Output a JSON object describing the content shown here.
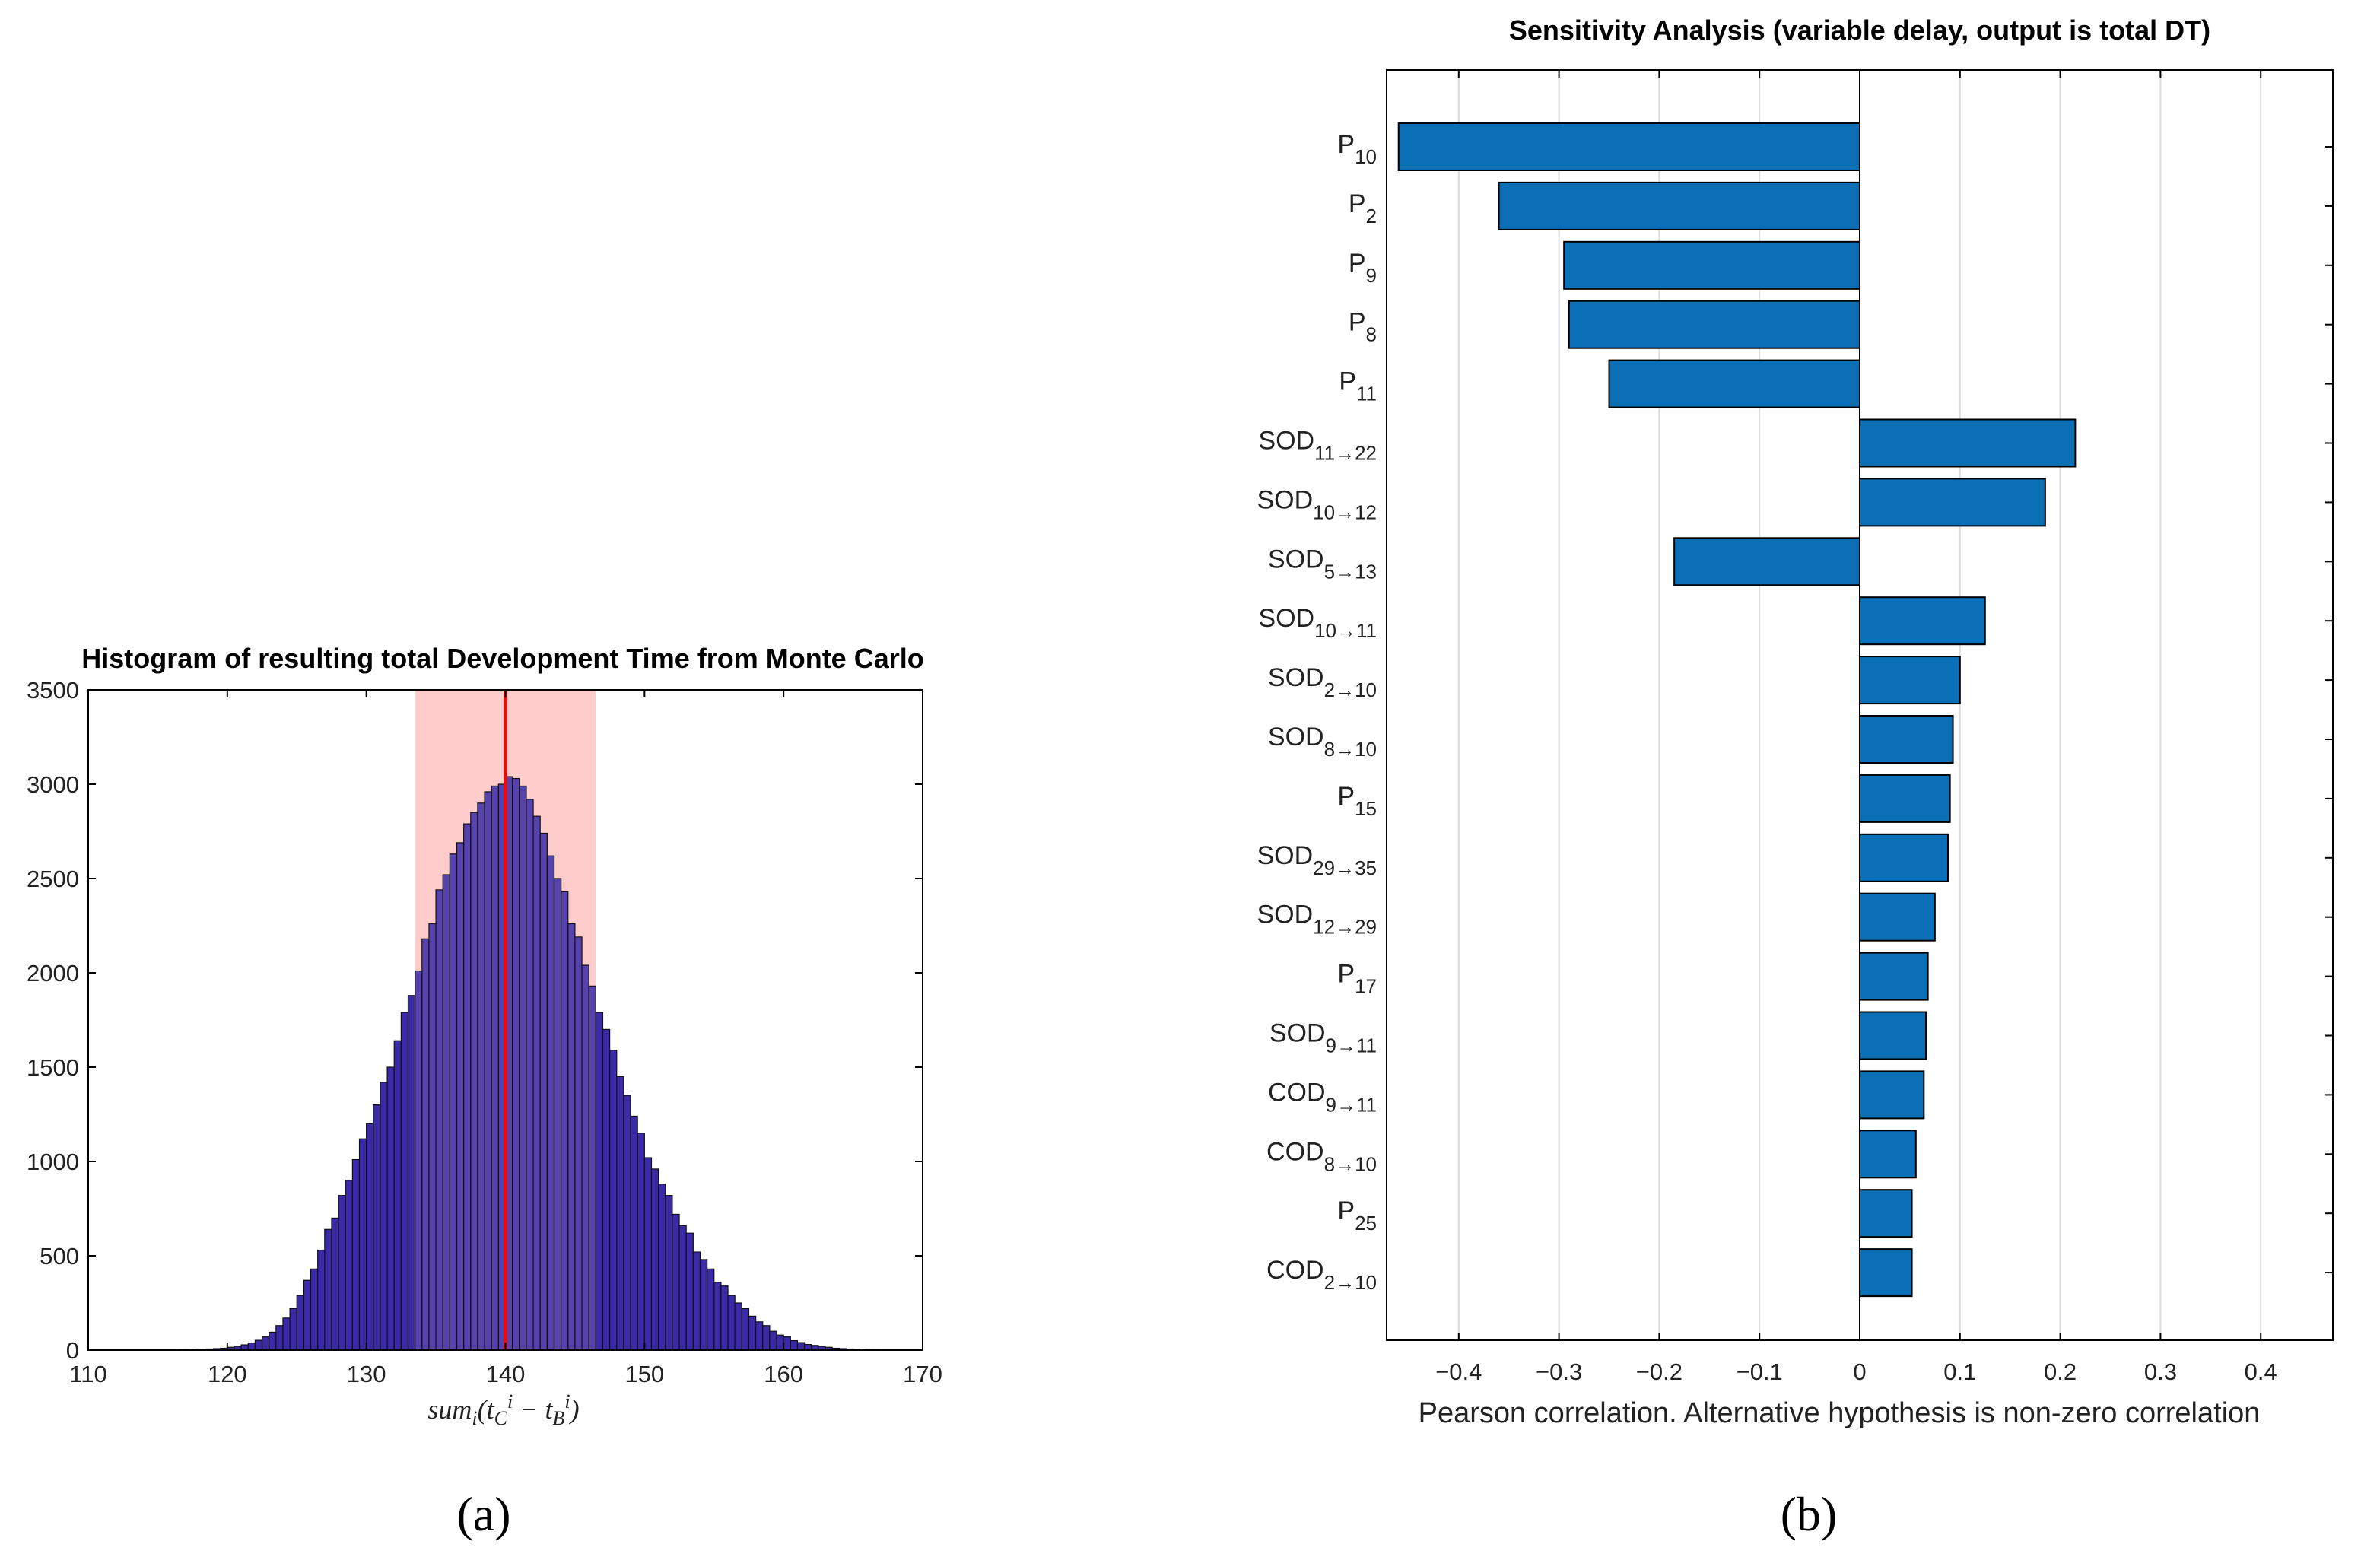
{
  "chart_data": [
    {
      "id": "a",
      "type": "bar",
      "subtype": "histogram",
      "title": "Histogram of resulting total Development Time from Monte Carlo",
      "xlabel_math": "sum_i(t_C^i - t_B^i)",
      "xlim": [
        110,
        170
      ],
      "ylim": [
        0,
        3500
      ],
      "xticks": [
        110,
        120,
        130,
        140,
        150,
        160,
        170
      ],
      "yticks": [
        0,
        500,
        1000,
        1500,
        2000,
        2500,
        3000,
        3500
      ],
      "bin_start": 115.5,
      "bin_width": 0.5,
      "values": [
        1,
        1,
        2,
        2,
        3,
        5,
        6,
        8,
        10,
        15,
        20,
        28,
        38,
        52,
        70,
        95,
        130,
        170,
        220,
        290,
        370,
        430,
        530,
        640,
        700,
        820,
        900,
        1010,
        1120,
        1200,
        1300,
        1420,
        1500,
        1640,
        1790,
        1880,
        2010,
        2180,
        2260,
        2440,
        2520,
        2630,
        2690,
        2790,
        2850,
        2900,
        2960,
        2990,
        3000,
        3040,
        3030,
        2990,
        2920,
        2830,
        2740,
        2620,
        2500,
        2430,
        2260,
        2190,
        2040,
        1930,
        1790,
        1700,
        1590,
        1450,
        1350,
        1240,
        1150,
        1020,
        960,
        880,
        820,
        720,
        660,
        620,
        520,
        480,
        430,
        360,
        340,
        290,
        250,
        220,
        180,
        150,
        130,
        100,
        80,
        70,
        50,
        40,
        30,
        25,
        20,
        15,
        10,
        8,
        6,
        5,
        3,
        2,
        2,
        1,
        1
      ],
      "shaded_range": [
        133.5,
        146.5
      ],
      "mean_line": 140,
      "bar_color": "#3a2aa8",
      "shade_color": "#ffcccc",
      "line_color": "#e01010",
      "caption": "(a)"
    },
    {
      "id": "b",
      "type": "bar",
      "orientation": "horizontal",
      "title": "Sensitivity Analysis (variable delay, output is total DT)",
      "xlabel": "Pearson correlation. Alternative hypothesis is non-zero correlation",
      "xlim": [
        -0.47,
        0.47
      ],
      "xticks": [
        -0.4,
        -0.3,
        -0.2,
        -0.1,
        0,
        0.1,
        0.2,
        0.3,
        0.4
      ],
      "xtick_labels": [
        "−0.4",
        "−0.3",
        "−0.2",
        "−0.1",
        "0",
        "0.1",
        "0.2",
        "0.3",
        "0.4"
      ],
      "grid": true,
      "categories": [
        {
          "base": "P",
          "sub": "10"
        },
        {
          "base": "P",
          "sub": "2"
        },
        {
          "base": "P",
          "sub": "9"
        },
        {
          "base": "P",
          "sub": "8"
        },
        {
          "base": "P",
          "sub": "11"
        },
        {
          "base": "SOD",
          "sub": "11→22"
        },
        {
          "base": "SOD",
          "sub": "10→12"
        },
        {
          "base": "SOD",
          "sub": "5→13"
        },
        {
          "base": "SOD",
          "sub": "10→11"
        },
        {
          "base": "SOD",
          "sub": "2→10"
        },
        {
          "base": "SOD",
          "sub": "8→10"
        },
        {
          "base": "P",
          "sub": "15"
        },
        {
          "base": "SOD",
          "sub": "29→35"
        },
        {
          "base": "SOD",
          "sub": "12→29"
        },
        {
          "base": "P",
          "sub": "17"
        },
        {
          "base": "SOD",
          "sub": "9→11"
        },
        {
          "base": "COD",
          "sub": "9→11"
        },
        {
          "base": "COD",
          "sub": "8→10"
        },
        {
          "base": "P",
          "sub": "25"
        },
        {
          "base": "COD",
          "sub": "2→10"
        }
      ],
      "values": [
        -0.46,
        -0.36,
        -0.295,
        -0.29,
        -0.25,
        0.215,
        0.185,
        -0.185,
        0.125,
        0.1,
        0.093,
        0.09,
        0.088,
        0.075,
        0.068,
        0.066,
        0.064,
        0.056,
        0.052,
        0.052
      ],
      "bar_color": "#0b6fb6",
      "caption": "(b)"
    }
  ]
}
